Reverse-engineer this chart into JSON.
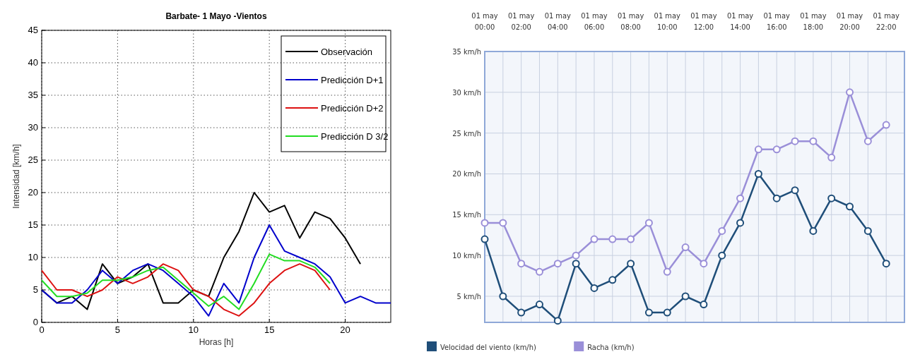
{
  "chart_data": [
    {
      "type": "line",
      "title": "Barbate- 1 Mayo -Vientos",
      "xlabel": "Horas [h]",
      "ylabel": "Intensidad [km/h]",
      "xlim": [
        0,
        23
      ],
      "xticks": [
        0,
        5,
        10,
        15,
        20
      ],
      "ylim": [
        0,
        45
      ],
      "yticks": [
        0,
        5,
        10,
        15,
        20,
        25,
        30,
        35,
        40,
        45
      ],
      "grid": true,
      "legend": "top right",
      "marker": "none",
      "line_style": "solid",
      "series": [
        {
          "name": "Observación",
          "color": "#000000",
          "x": [
            0,
            1,
            2,
            3,
            4,
            5,
            6,
            7,
            8,
            9,
            10,
            11,
            12,
            13,
            14,
            15,
            16,
            17,
            18,
            19,
            20,
            21
          ],
          "values": [
            5,
            3,
            4,
            2,
            9,
            6,
            7,
            9,
            3,
            3,
            5,
            4,
            10,
            14,
            20,
            17,
            18,
            13,
            17,
            16,
            13,
            9
          ]
        },
        {
          "name": "Predicción D+1",
          "color": "#0000cc",
          "x": [
            0,
            1,
            2,
            3,
            4,
            5,
            6,
            7,
            8,
            9,
            10,
            11,
            12,
            13,
            14,
            15,
            16,
            17,
            18,
            19,
            20,
            21,
            22,
            23
          ],
          "values": [
            5,
            3,
            3,
            5,
            8,
            6,
            8,
            9,
            8,
            6,
            4,
            1,
            6,
            3,
            10,
            15,
            11,
            10,
            9,
            7,
            3,
            4,
            3,
            3
          ]
        },
        {
          "name": "Predicción D+2",
          "color": "#dd1111",
          "x": [
            0,
            1,
            2,
            3,
            4,
            5,
            6,
            7,
            8,
            9,
            10,
            11,
            12,
            13,
            14,
            15,
            16,
            17,
            18,
            19
          ],
          "values": [
            8,
            5,
            5,
            4,
            5,
            7,
            6,
            7,
            9,
            8,
            5,
            4,
            2,
            1,
            3,
            6,
            8,
            9,
            8,
            5
          ]
        },
        {
          "name": "Predicción D 3/2",
          "color": "#22dd22",
          "x": [
            0,
            1,
            2,
            3,
            4,
            5,
            6,
            7,
            8,
            9,
            10,
            11,
            12,
            13,
            14,
            15,
            16,
            17,
            18,
            19
          ],
          "values": [
            6.5,
            4,
            4,
            4.5,
            6.5,
            6.5,
            7,
            8,
            8.5,
            6.5,
            4.5,
            2.5,
            4,
            2,
            6,
            10.5,
            9.5,
            9.5,
            8.5,
            6
          ]
        }
      ]
    },
    {
      "type": "line",
      "categories": [
        "01 may 00:00",
        null,
        "01 may 02:00",
        null,
        "01 may 04:00",
        null,
        "01 may 06:00",
        null,
        "01 may 08:00",
        null,
        "01 may 10:00",
        null,
        "01 may 12:00",
        null,
        "01 may 14:00",
        null,
        "01 may 16:00",
        null,
        "01 may 18:00",
        null,
        "01 may 20:00",
        null,
        "01 may 22:00"
      ],
      "ylim": [
        1.8,
        35
      ],
      "yticks": [
        {
          "value": 5,
          "label": "5 km/h"
        },
        {
          "value": 10,
          "label": "10 km/h"
        },
        {
          "value": 15,
          "label": "15 km/h"
        },
        {
          "value": 20,
          "label": "20 km/h"
        },
        {
          "value": 25,
          "label": "25 km/h"
        },
        {
          "value": 30,
          "label": "30 km/h"
        },
        {
          "value": 35,
          "label": "35 km/h"
        }
      ],
      "grid": true,
      "legend": "bottom",
      "marker": "circle",
      "line_style": "solid",
      "series": [
        {
          "name": "Velocidad del viento (km/h)",
          "color": "#1f4e79",
          "values": [
            12,
            5,
            3,
            4,
            2,
            9,
            6,
            7,
            9,
            3,
            3,
            5,
            4,
            10,
            14,
            20,
            17,
            18,
            13,
            17,
            16,
            13,
            9
          ]
        },
        {
          "name": "Racha (km/h)",
          "color": "#9a8fd8",
          "values": [
            14,
            14,
            9,
            8,
            9,
            10,
            12,
            12,
            12,
            14,
            8,
            11,
            9,
            13,
            17,
            23,
            23,
            24,
            24,
            22,
            30,
            24,
            26
          ]
        }
      ]
    }
  ]
}
